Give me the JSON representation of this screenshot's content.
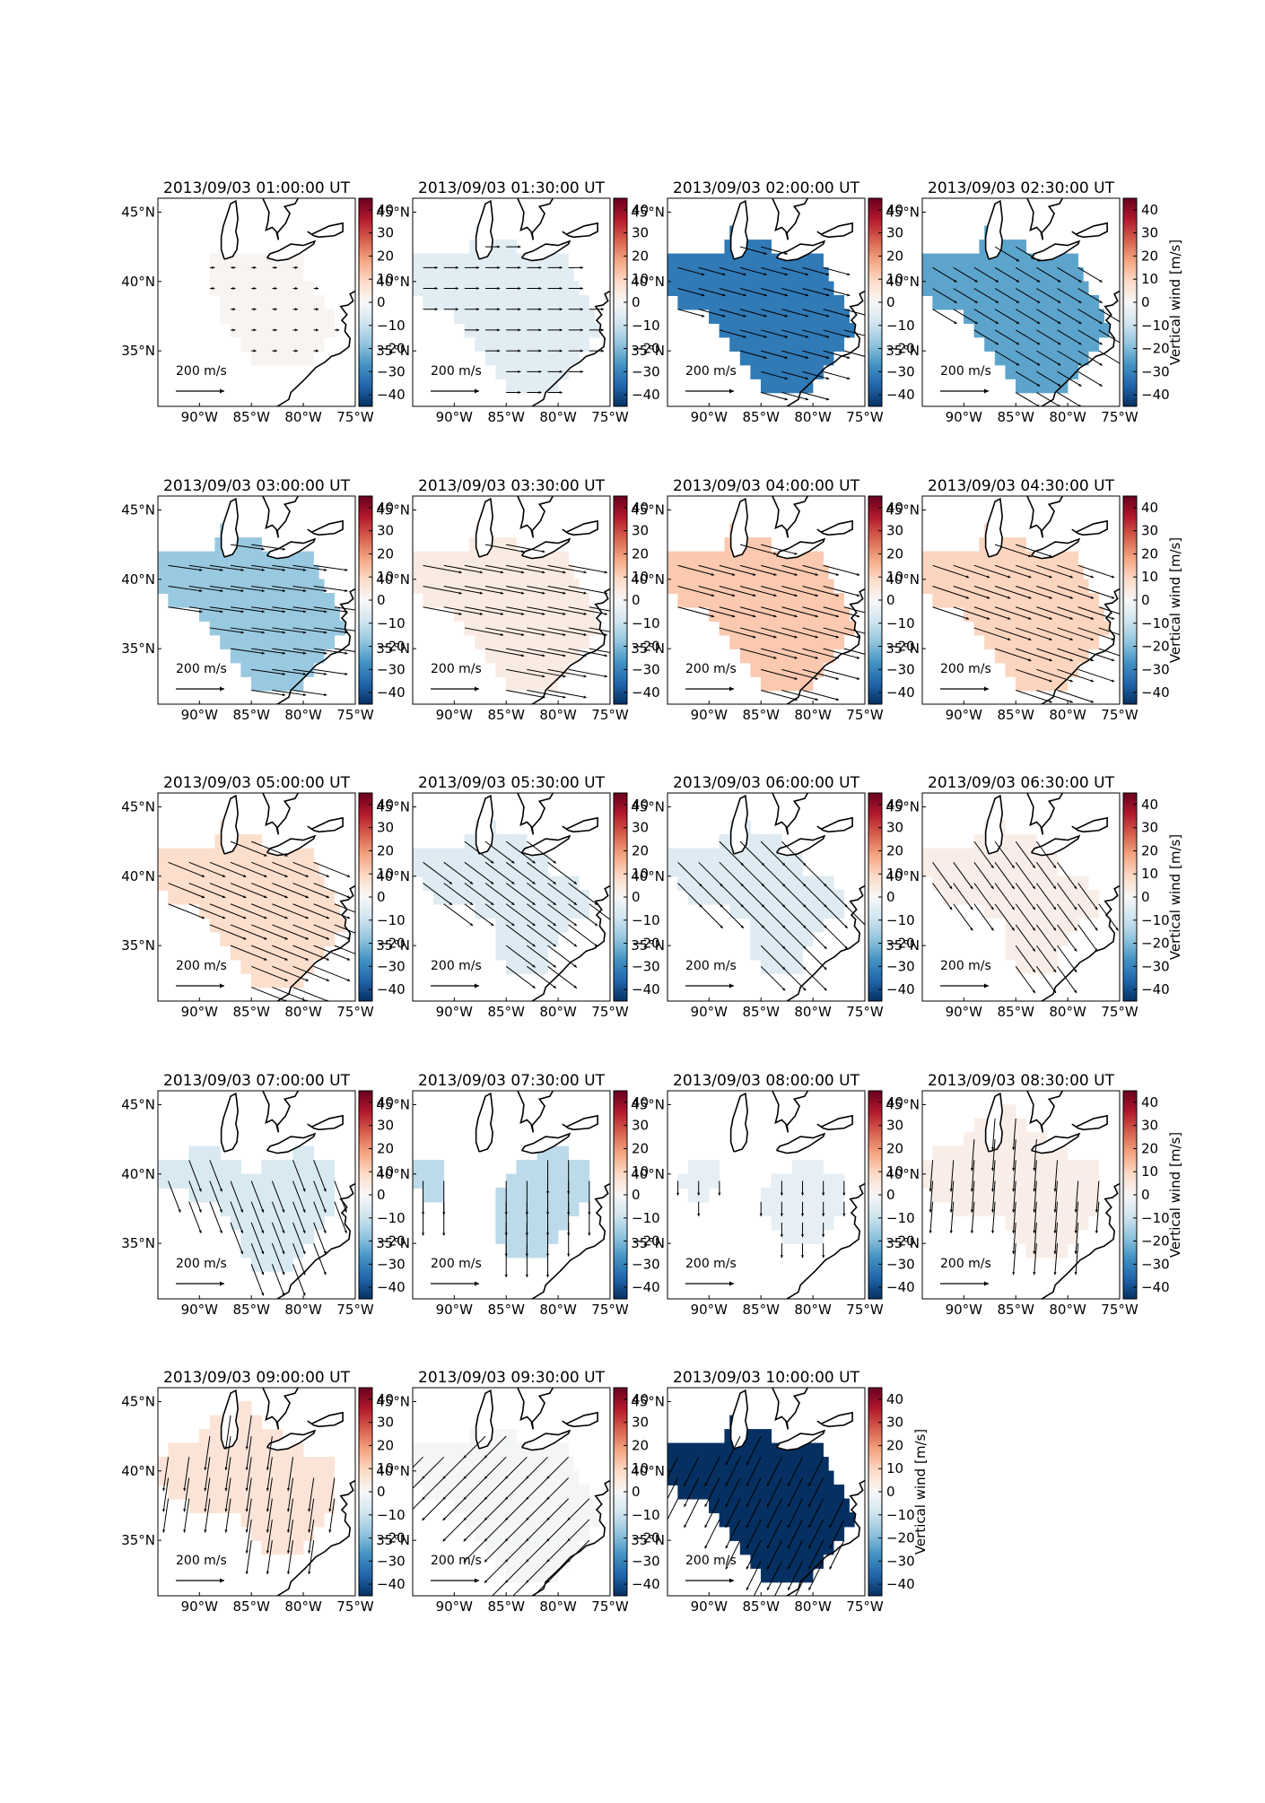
{
  "chart_data": {
    "type": "heatmap",
    "figure": "small multiples: maps of vertical wind over the eastern United States with horizontal wind vectors",
    "colormap": "RdBu_r",
    "colorbar": {
      "label": "Vertical wind [m/s]",
      "ticks": [
        40,
        30,
        20,
        10,
        0,
        -10,
        -20,
        -30,
        -40
      ],
      "tick_labels": [
        "40",
        "30",
        "20",
        "10",
        "0",
        "−10",
        "−20",
        "−30",
        "−40"
      ],
      "range": [
        -45,
        45
      ]
    },
    "x_ticks": [
      "90°W",
      "85°W",
      "80°W",
      "75°W"
    ],
    "y_ticks": [
      "45°N",
      "40°N",
      "35°N"
    ],
    "lon_range": [
      -94,
      -75
    ],
    "lat_range": [
      31,
      46
    ],
    "vector_key": {
      "value": 200,
      "label": "200 m/s"
    },
    "panels": [
      {
        "title": "2013/09/03 01:00:00 UT",
        "vertical_wind": 1,
        "wind_u": 20,
        "wind_v": 0,
        "region": "B"
      },
      {
        "title": "2013/09/03 01:30:00 UT",
        "vertical_wind": -5,
        "wind_u": 60,
        "wind_v": 0,
        "region": "A"
      },
      {
        "title": "2013/09/03 02:00:00 UT",
        "vertical_wind": -32,
        "wind_u": 110,
        "wind_v": -30,
        "region": "A"
      },
      {
        "title": "2013/09/03 02:30:00 UT",
        "vertical_wind": -24,
        "wind_u": 100,
        "wind_v": -60,
        "region": "A"
      },
      {
        "title": "2013/09/03 03:00:00 UT",
        "vertical_wind": -17,
        "wind_u": 140,
        "wind_v": -20,
        "region": "A"
      },
      {
        "title": "2013/09/03 03:30:00 UT",
        "vertical_wind": 4,
        "wind_u": 160,
        "wind_v": -30,
        "region": "A"
      },
      {
        "title": "2013/09/03 04:00:00 UT",
        "vertical_wind": 12,
        "wind_u": 150,
        "wind_v": -40,
        "region": "A"
      },
      {
        "title": "2013/09/03 04:30:00 UT",
        "vertical_wind": 10,
        "wind_u": 150,
        "wind_v": -50,
        "region": "A"
      },
      {
        "title": "2013/09/03 05:00:00 UT",
        "vertical_wind": 8,
        "wind_u": 150,
        "wind_v": -60,
        "region": "A"
      },
      {
        "title": "2013/09/03 05:30:00 UT",
        "vertical_wind": -6,
        "wind_u": 120,
        "wind_v": -90,
        "region": "C"
      },
      {
        "title": "2013/09/03 06:00:00 UT",
        "vertical_wind": -6,
        "wind_u": 100,
        "wind_v": -100,
        "region": "C"
      },
      {
        "title": "2013/09/03 06:30:00 UT",
        "vertical_wind": 3,
        "wind_u": 80,
        "wind_v": -110,
        "region": "C"
      },
      {
        "title": "2013/09/03 07:00:00 UT",
        "vertical_wind": -7,
        "wind_u": 50,
        "wind_v": -130,
        "region": "D"
      },
      {
        "title": "2013/09/03 07:30:00 UT",
        "vertical_wind": -12,
        "wind_u": 0,
        "wind_v": -140,
        "region": "E"
      },
      {
        "title": "2013/09/03 08:00:00 UT",
        "vertical_wind": -4,
        "wind_u": 0,
        "wind_v": -60,
        "region": "F"
      },
      {
        "title": "2013/09/03 08:30:00 UT",
        "vertical_wind": 3,
        "wind_u": -10,
        "wind_v": -130,
        "region": "G"
      },
      {
        "title": "2013/09/03 09:00:00 UT",
        "vertical_wind": 6,
        "wind_u": -20,
        "wind_v": -140,
        "region": "G"
      },
      {
        "title": "2013/09/03 09:30:00 UT",
        "vertical_wind": -1,
        "wind_u": -90,
        "wind_v": -90,
        "region": "A"
      },
      {
        "title": "2013/09/03 10:00:00 UT",
        "vertical_wind": -45,
        "wind_u": -60,
        "wind_v": -120,
        "region": "A"
      }
    ]
  }
}
